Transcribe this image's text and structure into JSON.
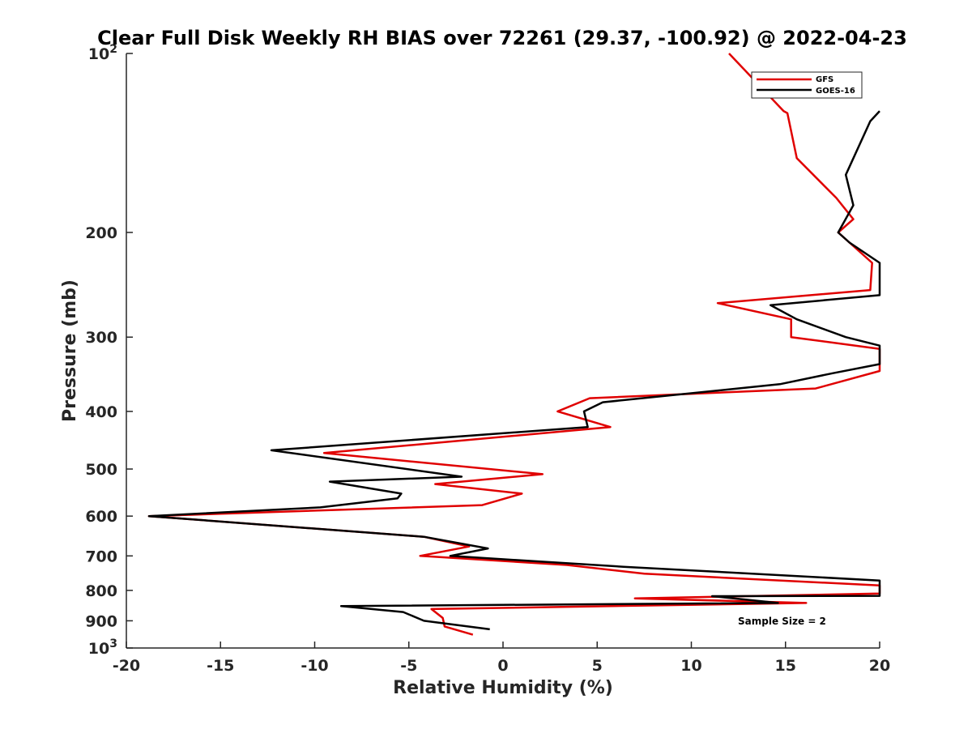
{
  "chart_data": {
    "type": "line",
    "title": "Clear Full Disk Weekly RH BIAS over 72261 (29.37, -100.92) @ 2022-04-23",
    "xlabel": "Relative Humidity (%)",
    "ylabel": "Pressure (mb)",
    "xlim": [
      -20,
      20
    ],
    "ylim": [
      100,
      1000
    ],
    "y_scale": "log",
    "y_reversed": true,
    "grid": false,
    "legend_position": "top-right",
    "x_ticks": [
      "-20",
      "-15",
      "-10",
      "-5",
      "0",
      "5",
      "10",
      "15",
      "20"
    ],
    "y_ticks": [
      {
        "value": 100,
        "base": "10",
        "exp": "2"
      },
      {
        "value": 200,
        "label": "200"
      },
      {
        "value": 300,
        "label": "300"
      },
      {
        "value": 400,
        "label": "400"
      },
      {
        "value": 500,
        "label": "500"
      },
      {
        "value": 600,
        "label": "600"
      },
      {
        "value": 700,
        "label": "700"
      },
      {
        "value": 800,
        "label": "800"
      },
      {
        "value": 900,
        "label": "900"
      },
      {
        "value": 1000,
        "base": "10",
        "exp": "3"
      }
    ],
    "annotation": "Sample Size = 2",
    "series": [
      {
        "name": "GFS",
        "color": "#e00000",
        "points": [
          [
            12.0,
            100
          ],
          [
            14.9,
            125
          ],
          [
            15.1,
            126
          ],
          [
            15.6,
            150
          ],
          [
            17.7,
            175
          ],
          [
            18.6,
            190
          ],
          [
            17.8,
            200
          ],
          [
            19.6,
            225
          ],
          [
            19.5,
            250
          ],
          [
            11.4,
            263
          ],
          [
            15.3,
            280
          ],
          [
            15.3,
            300
          ],
          [
            20.0,
            314
          ],
          [
            20.0,
            342
          ],
          [
            16.6,
            366
          ],
          [
            4.6,
            380
          ],
          [
            2.9,
            400
          ],
          [
            5.7,
            425
          ],
          [
            -9.5,
            470
          ],
          [
            2.1,
            510
          ],
          [
            -3.6,
            530
          ],
          [
            1.0,
            550
          ],
          [
            -1.1,
            575
          ],
          [
            -18.8,
            600
          ],
          [
            -4.2,
            650
          ],
          [
            -1.8,
            675
          ],
          [
            -4.4,
            700
          ],
          [
            3.4,
            725
          ],
          [
            7.5,
            750
          ],
          [
            20.0,
            785
          ],
          [
            20.0,
            810
          ],
          [
            7.0,
            825
          ],
          [
            16.1,
            840
          ],
          [
            -3.8,
            860
          ],
          [
            -3.2,
            890
          ],
          [
            -3.1,
            920
          ],
          [
            -1.6,
            950
          ]
        ]
      },
      {
        "name": "GOES-16",
        "color": "#000000",
        "points": [
          [
            20.0,
            125
          ],
          [
            19.5,
            130
          ],
          [
            18.2,
            160
          ],
          [
            18.6,
            180
          ],
          [
            17.8,
            200
          ],
          [
            18.4,
            208
          ],
          [
            20.0,
            225
          ],
          [
            20.0,
            255
          ],
          [
            14.2,
            265
          ],
          [
            15.6,
            280
          ],
          [
            18.2,
            300
          ],
          [
            20.0,
            310
          ],
          [
            20.0,
            333
          ],
          [
            17.5,
            345
          ],
          [
            14.7,
            360
          ],
          [
            5.3,
            386
          ],
          [
            4.3,
            400
          ],
          [
            4.5,
            425
          ],
          [
            -12.3,
            465
          ],
          [
            -2.2,
            515
          ],
          [
            -9.2,
            525
          ],
          [
            -5.4,
            550
          ],
          [
            -5.6,
            560
          ],
          [
            -9.7,
            580
          ],
          [
            -18.8,
            600
          ],
          [
            -4.2,
            650
          ],
          [
            -0.8,
            680
          ],
          [
            -2.8,
            700
          ],
          [
            6.4,
            730
          ],
          [
            20.0,
            770
          ],
          [
            20.0,
            817
          ],
          [
            11.1,
            818
          ],
          [
            14.6,
            840
          ],
          [
            -8.6,
            850
          ],
          [
            -5.3,
            870
          ],
          [
            -4.2,
            900
          ],
          [
            -0.7,
            930
          ]
        ]
      }
    ]
  }
}
